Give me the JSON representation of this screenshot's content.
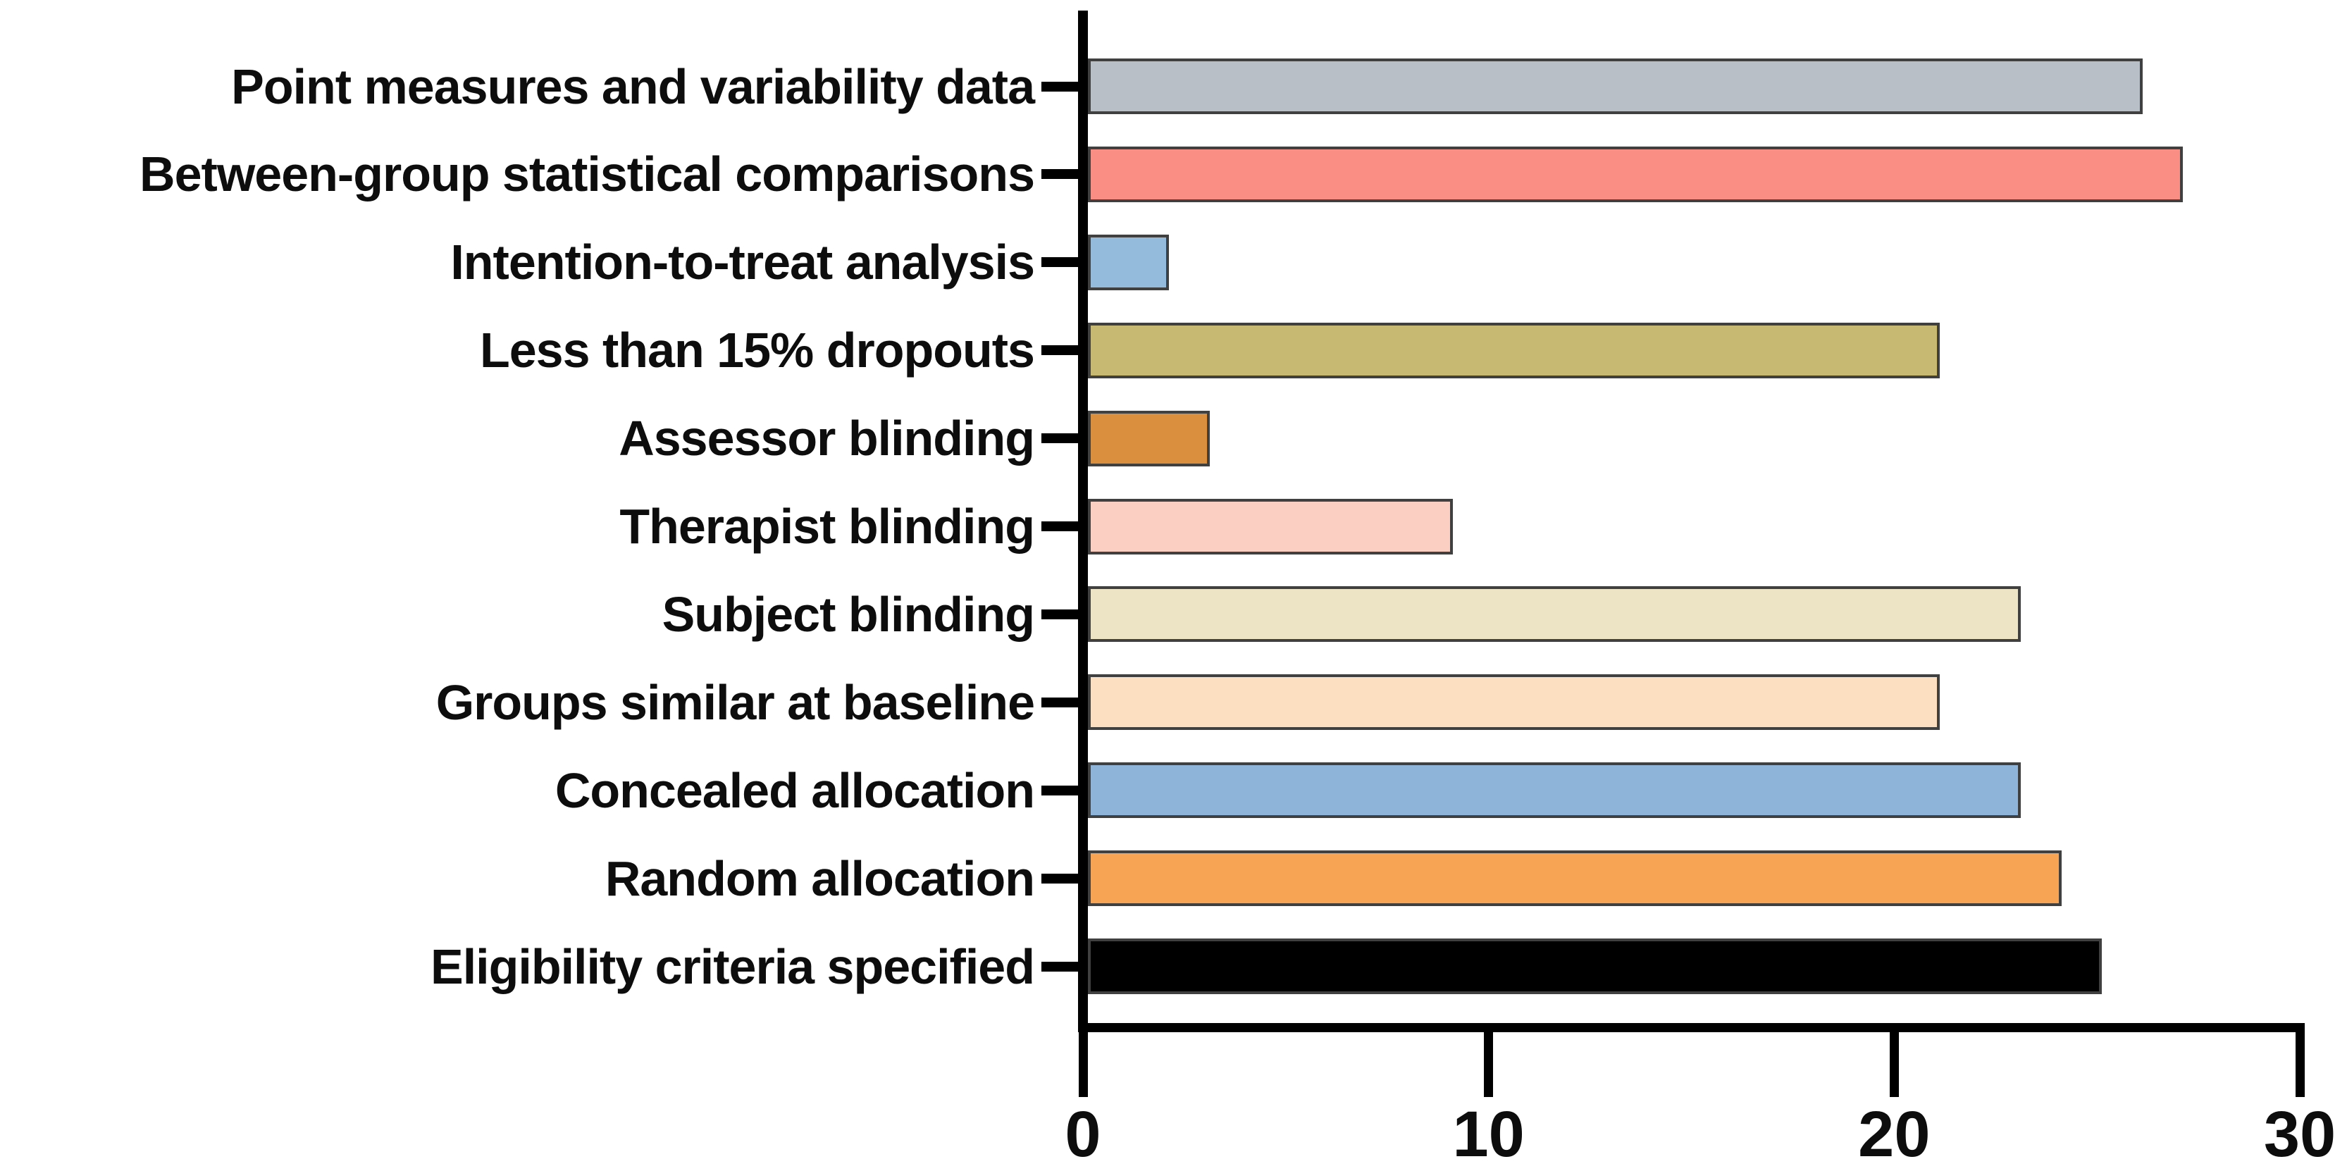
{
  "chart_data": {
    "type": "bar",
    "orientation": "horizontal",
    "title": "",
    "xlabel": "",
    "ylabel": "",
    "categories": [
      "Point measures and variability data",
      "Between-group statistical comparisons",
      "Intention-to-treat analysis",
      "Less than 15% dropouts",
      "Assessor blinding",
      "Therapist blinding",
      "Subject blinding",
      "Groups similar at baseline",
      "Concealed allocation",
      "Random allocation",
      "Eligibility criteria specified"
    ],
    "values": [
      26,
      27,
      2,
      21,
      3,
      9,
      23,
      21,
      23,
      24,
      25
    ],
    "bar_colors": [
      "#b9bfc7",
      "#fb8e84",
      "#94badc",
      "#c8b972",
      "#d98f3e",
      "#fbcfc2",
      "#ece4c5",
      "#fcdfc0",
      "#8eb4da",
      "#f7a455",
      "#000000"
    ],
    "bar_border_color": "#404040",
    "axis_color": "#000000",
    "text_color": "#0d0d0d",
    "xlim": [
      0,
      30
    ],
    "x_ticks": [
      "0",
      "10",
      "20",
      "30"
    ],
    "x_tick_values": [
      0,
      10,
      20,
      30
    ],
    "grid": false,
    "legend": false
  }
}
